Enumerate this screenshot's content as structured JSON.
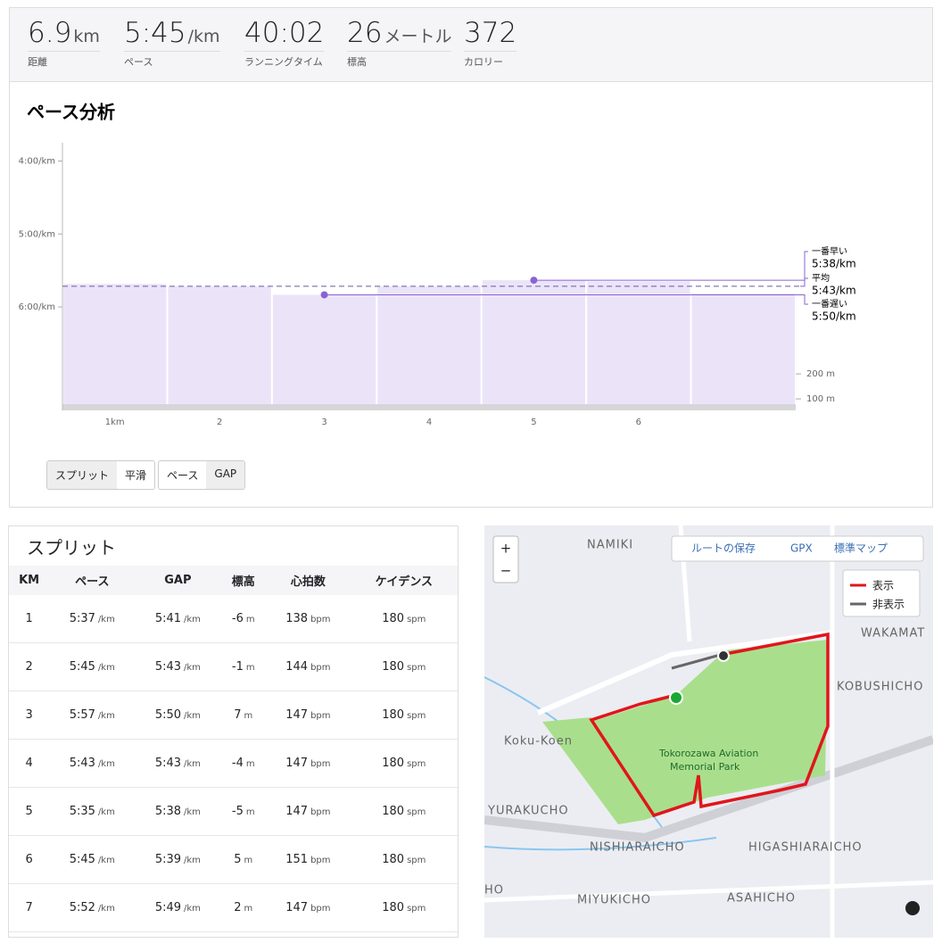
{
  "stats": [
    {
      "value": "6.9",
      "unit": "km",
      "label": "距離"
    },
    {
      "value": "5:45",
      "unit": "/km",
      "label": "ペース"
    },
    {
      "value": "40:02",
      "unit": "",
      "label": "ランニングタイム"
    },
    {
      "value": "26",
      "unit": "メートル",
      "label": "標高"
    },
    {
      "value": "372",
      "unit": "",
      "label": "カロリー"
    }
  ],
  "chart_data": {
    "type": "bar",
    "title": "ペース分析",
    "categories": [
      "1km",
      "2",
      "3",
      "4",
      "5",
      "6",
      null
    ],
    "values": [
      341,
      343,
      350,
      343,
      338,
      339,
      349
    ],
    "color": "#ebe4f9",
    "ylim": [
      225,
      445
    ],
    "yticks": [
      {
        "value": 240,
        "label": "4:00/km"
      },
      {
        "value": 300,
        "label": "5:00/km"
      },
      {
        "value": 360,
        "label": "6:00/km"
      }
    ],
    "y2lim": [
      54,
      1125
    ],
    "y2ticks": [
      {
        "value": 200,
        "label": "200 m"
      },
      {
        "value": 100,
        "label": "100 m"
      }
    ],
    "annotations": [
      {
        "label": "一番早い",
        "value": 338,
        "value_label": "5:38/km"
      },
      {
        "label": "平均",
        "value": 343,
        "value_label": "5:43/km"
      },
      {
        "label": "一番遅い",
        "value": 350,
        "value_label": "5:50/km"
      }
    ]
  },
  "buttons": [
    "スプリット",
    "平滑",
    "ペース",
    "GAP"
  ],
  "splits": {
    "title": "スプリット",
    "headers": [
      "KM",
      "ペース",
      "GAP",
      "標高",
      "心拍数",
      "ケイデンス"
    ],
    "rows": [
      [
        {
          "value": "1"
        },
        {
          "value": "5:37",
          "unit": "/km"
        },
        {
          "value": "5:41",
          "unit": "/km"
        },
        {
          "value": "-6",
          "unit": "m"
        },
        {
          "value": "138",
          "unit": "bpm"
        },
        {
          "value": "180",
          "unit": "spm"
        }
      ],
      [
        {
          "value": "2"
        },
        {
          "value": "5:45",
          "unit": "/km"
        },
        {
          "value": "5:43",
          "unit": "/km"
        },
        {
          "value": "-1",
          "unit": "m"
        },
        {
          "value": "144",
          "unit": "bpm"
        },
        {
          "value": "180",
          "unit": "spm"
        }
      ],
      [
        {
          "value": "3"
        },
        {
          "value": "5:57",
          "unit": "/km"
        },
        {
          "value": "5:50",
          "unit": "/km"
        },
        {
          "value": "7",
          "unit": "m"
        },
        {
          "value": "147",
          "unit": "bpm"
        },
        {
          "value": "180",
          "unit": "spm"
        }
      ],
      [
        {
          "value": "4"
        },
        {
          "value": "5:43",
          "unit": "/km"
        },
        {
          "value": "5:43",
          "unit": "/km"
        },
        {
          "value": "-4",
          "unit": "m"
        },
        {
          "value": "147",
          "unit": "bpm"
        },
        {
          "value": "180",
          "unit": "spm"
        }
      ],
      [
        {
          "value": "5"
        },
        {
          "value": "5:35",
          "unit": "/km"
        },
        {
          "value": "5:38",
          "unit": "/km"
        },
        {
          "value": "-5",
          "unit": "m"
        },
        {
          "value": "147",
          "unit": "bpm"
        },
        {
          "value": "180",
          "unit": "spm"
        }
      ],
      [
        {
          "value": "6"
        },
        {
          "value": "5:45",
          "unit": "/km"
        },
        {
          "value": "5:39",
          "unit": "/km"
        },
        {
          "value": "5",
          "unit": "m"
        },
        {
          "value": "151",
          "unit": "bpm"
        },
        {
          "value": "180",
          "unit": "spm"
        }
      ],
      [
        {
          "value": "7"
        },
        {
          "value": "5:52",
          "unit": "/km"
        },
        {
          "value": "5:49",
          "unit": "/km"
        },
        {
          "value": "2",
          "unit": "m"
        },
        {
          "value": "147",
          "unit": "bpm"
        },
        {
          "value": "180",
          "unit": "spm"
        }
      ]
    ]
  },
  "map": {
    "zoom_in": "+",
    "zoom_out": "−",
    "controls": [
      "ルートの保存",
      "GPX",
      "標準マップ"
    ],
    "legend": [
      "表示",
      "非表示"
    ],
    "labels": [
      "NAMIKI",
      "WAKAMAT",
      "KOBUSHICHO",
      "Koku-Koen",
      "Tokorozawa Aviation",
      "Memorial Park",
      "YURAKUCHO",
      "NISHIARAICHO",
      "HIGASHIARAICHO",
      "HO",
      "MIYUKICHO",
      "ASAHICHO"
    ]
  }
}
